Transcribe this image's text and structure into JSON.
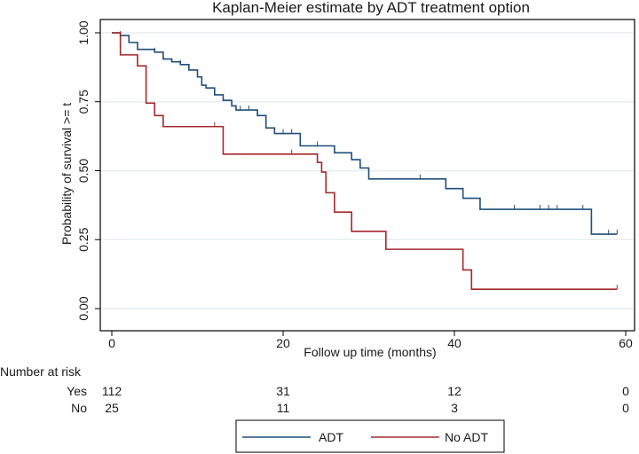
{
  "chart_data": {
    "type": "line",
    "title": "Kaplan-Meier estimate by ADT treatment option",
    "xlabel": "Follow up time (months)",
    "ylabel": "Probability of survival >= t",
    "xlim": [
      0,
      60
    ],
    "ylim": [
      0,
      1
    ],
    "x_ticks": [
      "0",
      "20",
      "40",
      "60"
    ],
    "y_ticks": [
      "0.00",
      "0.25",
      "0.50",
      "0.75",
      "1.00"
    ],
    "series": [
      {
        "name": "ADT",
        "color": "#1f4e79",
        "steps": [
          [
            0,
            1.0
          ],
          [
            1,
            0.99
          ],
          [
            2,
            0.965
          ],
          [
            3,
            0.94
          ],
          [
            5,
            0.93
          ],
          [
            6,
            0.905
          ],
          [
            7,
            0.895
          ],
          [
            8,
            0.885
          ],
          [
            9,
            0.865
          ],
          [
            10,
            0.84
          ],
          [
            10.5,
            0.81
          ],
          [
            11,
            0.8
          ],
          [
            12,
            0.775
          ],
          [
            13,
            0.755
          ],
          [
            14,
            0.735
          ],
          [
            14.5,
            0.72
          ],
          [
            17,
            0.7
          ],
          [
            18,
            0.655
          ],
          [
            19,
            0.635
          ],
          [
            22,
            0.59
          ],
          [
            26,
            0.565
          ],
          [
            28,
            0.54
          ],
          [
            29,
            0.51
          ],
          [
            30,
            0.47
          ],
          [
            39,
            0.435
          ],
          [
            41,
            0.4
          ],
          [
            43,
            0.36
          ],
          [
            56,
            0.27
          ],
          [
            59,
            0.27
          ]
        ],
        "censor_times": [
          1,
          2,
          5,
          6,
          8,
          10,
          12,
          15,
          16,
          17,
          20,
          21,
          24,
          26,
          29,
          36,
          47,
          50,
          51,
          52,
          55,
          58,
          59
        ]
      },
      {
        "name": "No ADT",
        "color": "#a3282b",
        "steps": [
          [
            0,
            1.0
          ],
          [
            1,
            0.92
          ],
          [
            3,
            0.88
          ],
          [
            4,
            0.745
          ],
          [
            5,
            0.7
          ],
          [
            6,
            0.66
          ],
          [
            13,
            0.56
          ],
          [
            24,
            0.53
          ],
          [
            24.5,
            0.495
          ],
          [
            25,
            0.42
          ],
          [
            26,
            0.35
          ],
          [
            28,
            0.28
          ],
          [
            32,
            0.215
          ],
          [
            40.5,
            0.215
          ],
          [
            41,
            0.14
          ],
          [
            42,
            0.07
          ],
          [
            59,
            0.07
          ]
        ],
        "censor_times": [
          1,
          12,
          21,
          59
        ]
      }
    ],
    "legend": "bottom-center"
  },
  "risk_table": {
    "heading": "Number at risk",
    "times": [
      "0",
      "20",
      "40",
      "60"
    ],
    "rows": [
      {
        "label": "Yes",
        "counts": [
          "112",
          "31",
          "12",
          "0"
        ]
      },
      {
        "label": "No",
        "counts": [
          "25",
          "11",
          "3",
          "0"
        ]
      }
    ]
  },
  "legend": {
    "items": [
      {
        "label": "ADT",
        "color": "#1f4e79"
      },
      {
        "label": "No ADT",
        "color": "#a3282b"
      }
    ]
  }
}
